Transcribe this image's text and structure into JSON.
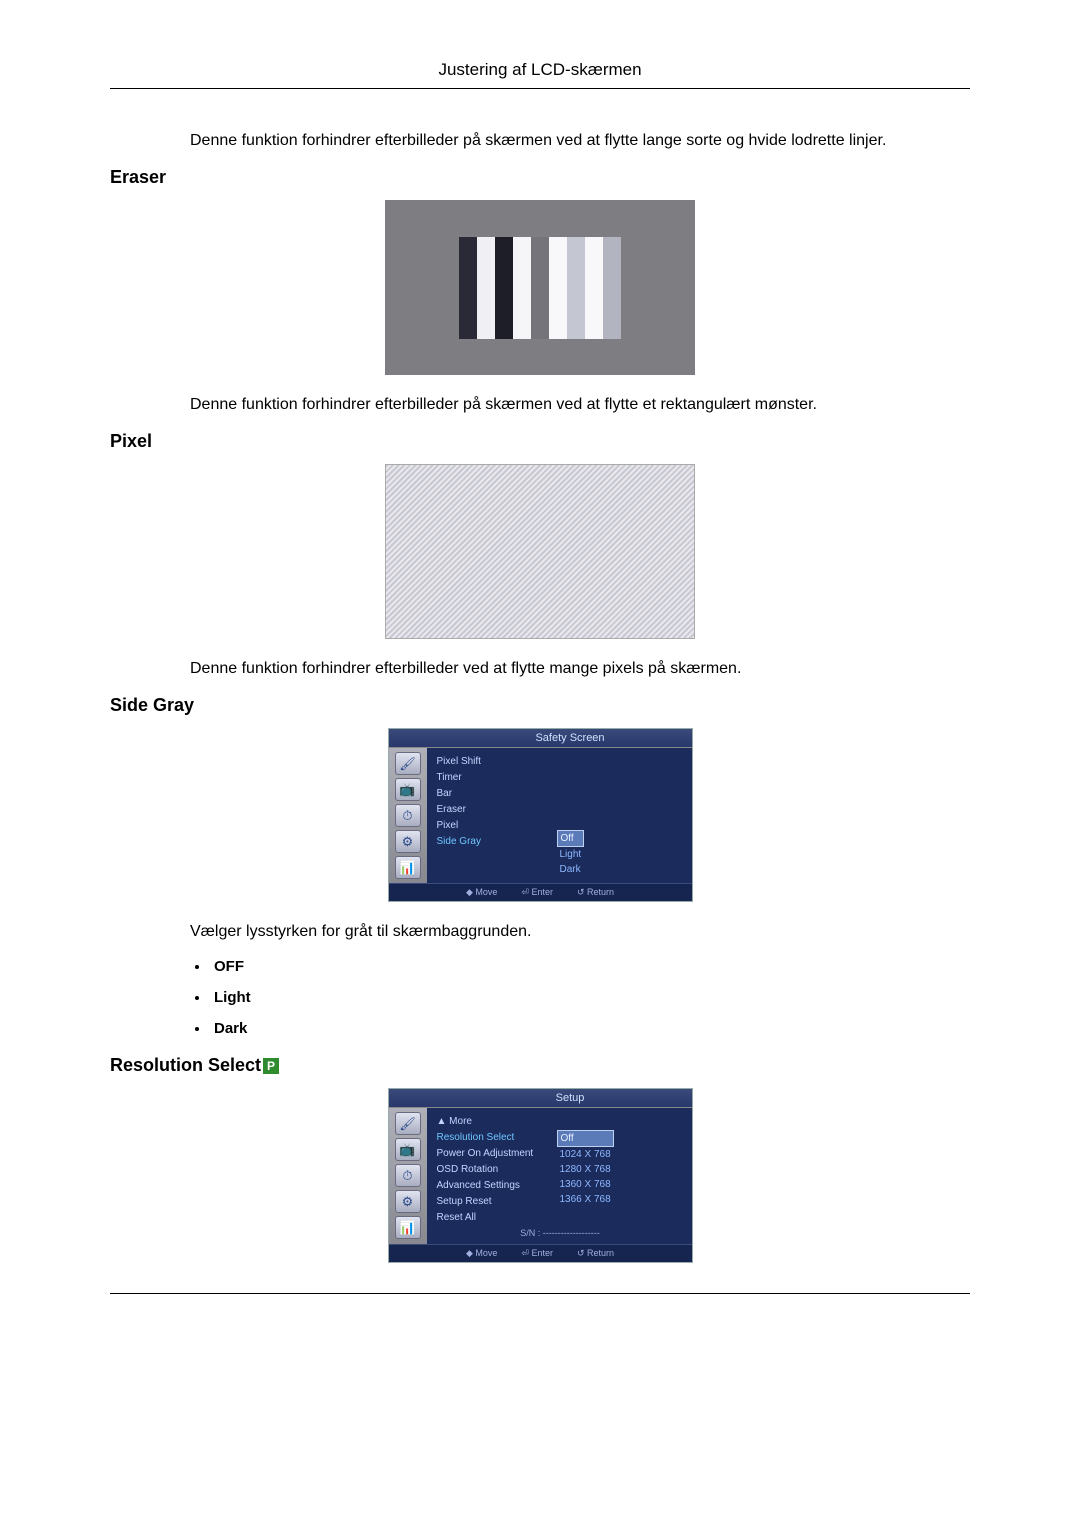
{
  "page_header": "Justering af LCD-skærmen",
  "intro_text": "Denne funktion forhindrer efterbilleder på skærmen ved at flytte lange sorte og hvide lodrette linjer.",
  "sections": {
    "eraser": {
      "heading": "Eraser",
      "desc": "Denne funktion forhindrer efterbilleder på skærmen ved at flytte et rektangulært mønster.",
      "figure": {
        "bg": "#7d7d82",
        "bars": [
          "#2a2a36",
          "#f0f0f4",
          "#1e1e28",
          "#f6f6f8",
          "#74747a",
          "#f8f8fa",
          "#c4c6d2",
          "#f8f8fa",
          "#b2b4c0"
        ]
      }
    },
    "pixel": {
      "heading": "Pixel",
      "desc": "Denne funktion forhindrer efterbilleder ved at flytte mange pixels på skærmen."
    },
    "sidegray": {
      "heading": "Side Gray",
      "desc": "Vælger lysstyrken for gråt til skærmbaggrunden.",
      "options": [
        "OFF",
        "Light",
        "Dark"
      ],
      "osd": {
        "title": "Safety Screen",
        "items": [
          "Pixel Shift",
          "Timer",
          "Bar",
          "Eraser",
          "Pixel",
          "Side Gray"
        ],
        "selected_index": 5,
        "values": [
          "Off",
          "Light",
          "Dark"
        ],
        "value_selected_index": 0,
        "footer": [
          "◆ Move",
          "⏎ Enter",
          "↺ Return"
        ]
      }
    },
    "resolution": {
      "heading": "Resolution Select",
      "badge": "P",
      "osd": {
        "title": "Setup",
        "items": [
          "▲ More",
          "Resolution Select",
          "Power On Adjustment",
          "OSD Rotation",
          "Advanced Settings",
          "Setup Reset",
          "Reset All"
        ],
        "selected_index": 1,
        "values": [
          "Off",
          "1024 X 768",
          "1280 X 768",
          "1360 X 768",
          "1366 X 768"
        ],
        "value_selected_index": 0,
        "sn": "S/N : -------------------",
        "footer": [
          "◆ Move",
          "⏎ Enter",
          "↺ Return"
        ]
      }
    }
  },
  "osd_icons": [
    "🖌",
    "📺",
    "⏱",
    "⚙",
    "📊"
  ]
}
